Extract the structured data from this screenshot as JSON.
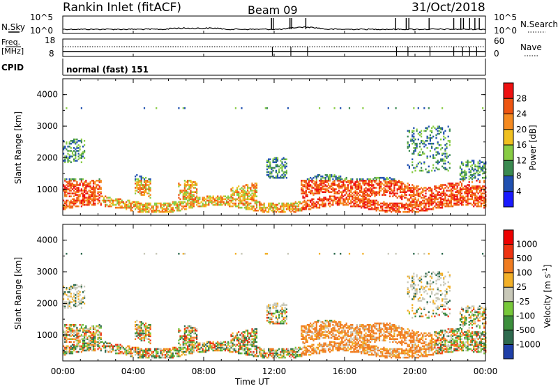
{
  "header": {
    "radar": "Rankin Inlet (fitACF)",
    "beam": "Beam 09",
    "date": "31/Oct/2018"
  },
  "noise": {
    "left_label": "N.Sky",
    "right_label": "N.Search",
    "left_ticks": [
      "10^5",
      "10^0"
    ],
    "right_ticks": [
      "10^5",
      "10^0"
    ]
  },
  "freq": {
    "left_label_1": "Freq.",
    "left_label_2": "[MHz]",
    "right_label": "Nave",
    "left_ticks": [
      "18",
      "8"
    ],
    "right_ticks": [
      "60",
      "0"
    ]
  },
  "cpid": {
    "label": "CPID",
    "value": "normal (fast) 151"
  },
  "x_axis": {
    "title": "Time UT",
    "ticks": [
      "00:00",
      "04:00",
      "08:00",
      "12:00",
      "16:00",
      "20:00",
      "00:00"
    ]
  },
  "chart_data": [
    {
      "type": "heatmap",
      "name": "power",
      "ylabel": "Slant Range [km]",
      "y_ticks": [
        "1000",
        "2000",
        "3000",
        "4000"
      ],
      "ylim": [
        180,
        4500
      ],
      "colorbar_label": "Power [dB]",
      "colorbar_ticks": [
        "4",
        "8",
        "12",
        "16",
        "20",
        "24",
        "28"
      ],
      "colors": [
        "#1a1aff",
        "#2050b0",
        "#3a8a50",
        "#88cc44",
        "#f0c020",
        "#f58a20",
        "#ee5511",
        "#ee1111"
      ]
    },
    {
      "type": "heatmap",
      "name": "velocity",
      "ylabel": "Slant Range [km]",
      "y_ticks": [
        "1000",
        "2000",
        "3000",
        "4000"
      ],
      "ylim": [
        180,
        4500
      ],
      "colorbar_label": "Velocity [m s^-1]",
      "colorbar_ticks": [
        "1000",
        "500",
        "100",
        "25",
        "-25",
        "-100",
        "-500",
        "-1000"
      ],
      "colors": [
        "#1f3fa8",
        "#2e6a4e",
        "#3c8f3c",
        "#77c83a",
        "#c8c8b8",
        "#f2b028",
        "#f07c20",
        "#ee3311",
        "#ee0000"
      ]
    }
  ]
}
